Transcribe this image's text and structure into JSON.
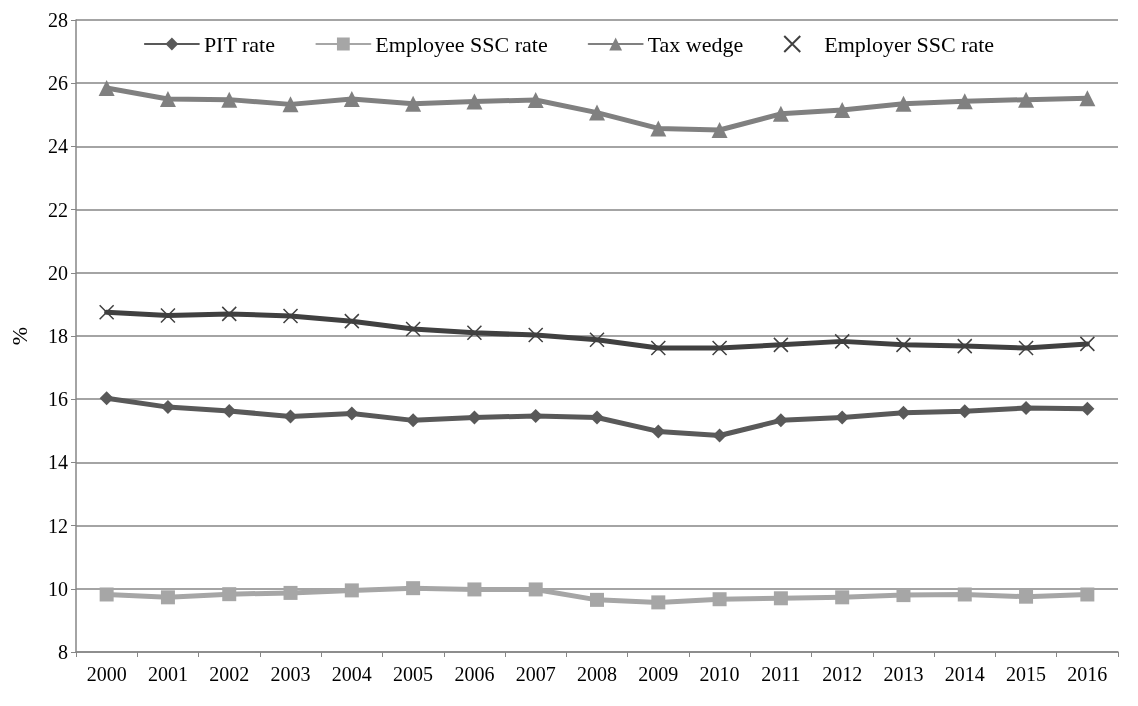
{
  "chart_data": {
    "type": "line",
    "ylabel": "%",
    "categories": [
      "2000",
      "2001",
      "2002",
      "2003",
      "2004",
      "2005",
      "2006",
      "2007",
      "2008",
      "2009",
      "2010",
      "2011",
      "2012",
      "2013",
      "2014",
      "2015",
      "2016"
    ],
    "series": [
      {
        "name": "PIT rate",
        "color": "#595959",
        "marker": "diamond",
        "values": [
          16.03,
          15.75,
          15.63,
          15.45,
          15.55,
          15.33,
          15.42,
          15.47,
          15.42,
          14.98,
          14.85,
          15.33,
          15.42,
          15.57,
          15.62,
          15.72,
          15.7
        ]
      },
      {
        "name": "Employee SSC rate",
        "color": "#a6a6a6",
        "marker": "square",
        "values": [
          9.82,
          9.73,
          9.83,
          9.87,
          9.95,
          10.02,
          9.98,
          9.98,
          9.65,
          9.57,
          9.67,
          9.7,
          9.73,
          9.8,
          9.82,
          9.75,
          9.82
        ]
      },
      {
        "name": "Tax wedge",
        "color": "#808080",
        "marker": "triangle",
        "values": [
          25.85,
          25.5,
          25.48,
          25.33,
          25.5,
          25.35,
          25.42,
          25.47,
          25.07,
          24.57,
          24.52,
          25.03,
          25.15,
          25.35,
          25.43,
          25.48,
          25.52
        ]
      },
      {
        "name": "Employer SSC rate",
        "color": "#404040",
        "marker": "cross",
        "values": [
          18.75,
          18.65,
          18.7,
          18.63,
          18.47,
          18.22,
          18.1,
          18.03,
          17.88,
          17.62,
          17.62,
          17.72,
          17.83,
          17.72,
          17.68,
          17.62,
          17.75
        ]
      }
    ],
    "ylim": [
      8,
      28
    ],
    "yticks": [
      8,
      10,
      12,
      14,
      16,
      18,
      20,
      22,
      24,
      26,
      28
    ],
    "grid": "y",
    "legend": "top",
    "line_style": "solid"
  }
}
